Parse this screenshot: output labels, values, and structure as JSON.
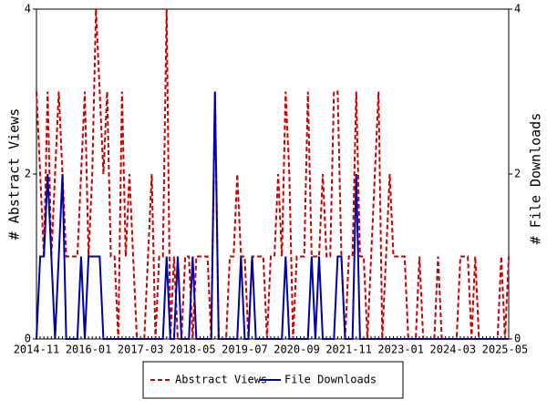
{
  "chart_data": {
    "type": "line",
    "y_label": "# Abstract Views",
    "y2_label": "# File Downloads",
    "categories": [
      "2014-11",
      null,
      null,
      null,
      null,
      null,
      null,
      null,
      null,
      null,
      null,
      null,
      null,
      null,
      "2016-01",
      null,
      null,
      null,
      null,
      null,
      null,
      null,
      null,
      null,
      null,
      null,
      null,
      null,
      "2017-03",
      null,
      null,
      null,
      null,
      null,
      null,
      null,
      null,
      null,
      null,
      null,
      null,
      null,
      "2018-05",
      null,
      null,
      null,
      null,
      null,
      null,
      null,
      null,
      null,
      null,
      null,
      null,
      null,
      "2019-07",
      null,
      null,
      null,
      null,
      null,
      null,
      null,
      null,
      null,
      null,
      null,
      null,
      null,
      "2020-09",
      null,
      null,
      null,
      null,
      null,
      null,
      null,
      null,
      null,
      null,
      null,
      null,
      null,
      "2021-11",
      null,
      null,
      null,
      null,
      null,
      null,
      null,
      null,
      null,
      null,
      null,
      null,
      null,
      "2023-01",
      null,
      null,
      null,
      null,
      null,
      null,
      null,
      null,
      null,
      null,
      null,
      null,
      null,
      "2024-03",
      null,
      null,
      null,
      null,
      null,
      null,
      null,
      null,
      null,
      null,
      null,
      null,
      null,
      "2025-05",
      null
    ],
    "series": [
      {
        "name": "Abstract Views",
        "color": "#cc0000",
        "dashed": true,
        "values": [
          3,
          2,
          1,
          3,
          1,
          2,
          3,
          2,
          1,
          1,
          1,
          1,
          2,
          3,
          1,
          2,
          4,
          3,
          2,
          3,
          1,
          1,
          0,
          3,
          1,
          2,
          1,
          0,
          0,
          0,
          1,
          2,
          0,
          1,
          1,
          4,
          0,
          1,
          0,
          0,
          1,
          1,
          0,
          1,
          1,
          1,
          1,
          0,
          3,
          0,
          0,
          0,
          1,
          1,
          2,
          1,
          1,
          0,
          1,
          1,
          1,
          1,
          0,
          1,
          1,
          2,
          1,
          3,
          2,
          0,
          1,
          1,
          1,
          3,
          1,
          1,
          1,
          2,
          1,
          1,
          3,
          3,
          1,
          0,
          1,
          1,
          3,
          1,
          1,
          0,
          1,
          2,
          3,
          0,
          1,
          2,
          1,
          1,
          1,
          1,
          0,
          0,
          0,
          1,
          0,
          0,
          0,
          0,
          1,
          0,
          0,
          0,
          0,
          0,
          1,
          1,
          1,
          0,
          1,
          0,
          0,
          0,
          0,
          0,
          0,
          1,
          0,
          1
        ]
      },
      {
        "name": "File Downloads",
        "color": "#0000aa",
        "dashed": false,
        "axis": "y2",
        "values": [
          0,
          1,
          1,
          2,
          1,
          0,
          1,
          2,
          0,
          0,
          0,
          0,
          1,
          0,
          1,
          1,
          1,
          1,
          0,
          0,
          0,
          0,
          0,
          0,
          0,
          0,
          0,
          0,
          0,
          0,
          0,
          0,
          0,
          0,
          0,
          1,
          0,
          0,
          1,
          0,
          0,
          0,
          1,
          0,
          0,
          0,
          0,
          0,
          3,
          0,
          0,
          0,
          0,
          0,
          0,
          1,
          0,
          0,
          1,
          0,
          0,
          0,
          0,
          0,
          0,
          0,
          0,
          1,
          0,
          0,
          0,
          0,
          0,
          0,
          1,
          0,
          1,
          0,
          0,
          0,
          0,
          1,
          1,
          0,
          0,
          0,
          2,
          0,
          0,
          0,
          0,
          0,
          0,
          0,
          0,
          0,
          0,
          0,
          0,
          0,
          0,
          0,
          0,
          0,
          0,
          0,
          0,
          0,
          0,
          0,
          0,
          0,
          0,
          0,
          0,
          0,
          0,
          0,
          0,
          0,
          0,
          0,
          0,
          0,
          0,
          0,
          0,
          0
        ]
      }
    ],
    "ylim": [
      0,
      4
    ],
    "yticks": [
      0,
      2,
      4
    ],
    "y2lim": [
      0,
      4
    ],
    "y2ticks": [
      0,
      2,
      4
    ],
    "legend": "bottom"
  }
}
